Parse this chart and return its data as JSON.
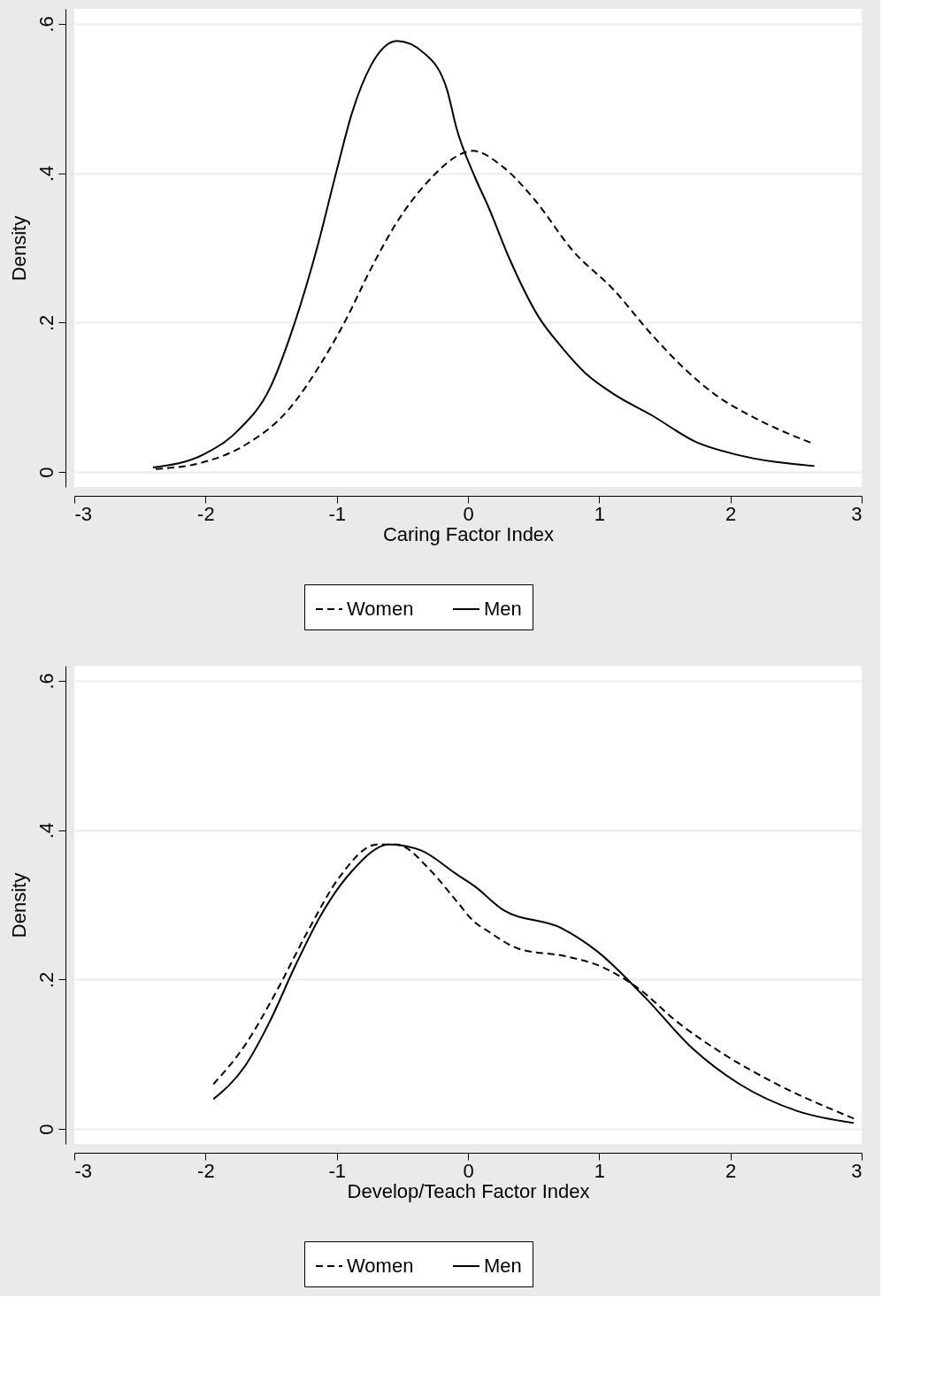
{
  "chart_data": [
    {
      "type": "line",
      "xlabel": "Caring Factor Index",
      "ylabel": "Density",
      "xlim": [
        -3,
        3
      ],
      "ylim": [
        -0.02,
        0.62
      ],
      "xticks": [
        -3,
        -2,
        -1,
        0,
        1,
        2,
        3
      ],
      "yticks": [
        0,
        {
          "value": 0.2,
          "label": ".2"
        },
        {
          "value": 0.4,
          "label": ".4"
        },
        {
          "value": 0.6,
          "label": ".6"
        }
      ],
      "grid": "y",
      "legend": "bottom",
      "series": [
        {
          "name": "Women",
          "color": "#000000",
          "line_style": "dashed",
          "x": [
            -2.38,
            -2.04,
            -1.7,
            -1.365,
            -1.125,
            -0.93,
            -0.74,
            -0.55,
            -0.31,
            -0.02,
            0.033,
            0.27,
            0.51,
            0.8,
            1.11,
            1.4,
            1.64,
            1.88,
            2.19,
            2.63
          ],
          "values": [
            0.004,
            0.012,
            0.036,
            0.084,
            0.144,
            0.204,
            0.272,
            0.332,
            0.388,
            0.428,
            0.43,
            0.408,
            0.364,
            0.296,
            0.244,
            0.184,
            0.14,
            0.104,
            0.072,
            0.038
          ]
        },
        {
          "name": "Men",
          "color": "#000000",
          "line_style": "solid",
          "x": [
            -2.4,
            -2.01,
            -1.75,
            -1.51,
            -1.32,
            -1.15,
            -1.0,
            -0.885,
            -0.74,
            -0.54,
            -0.33,
            -0.16,
            -0.087,
            0.05,
            0.153,
            0.32,
            0.537,
            0.71,
            0.897,
            1.114,
            1.4,
            1.74,
            2.03,
            2.64
          ],
          "values": [
            0.006,
            0.024,
            0.056,
            0.112,
            0.2,
            0.3,
            0.404,
            0.48,
            0.544,
            0.577,
            0.56,
            0.512,
            0.46,
            0.396,
            0.356,
            0.284,
            0.208,
            0.168,
            0.132,
            0.104,
            0.076,
            0.04,
            0.024,
            0.008
          ]
        }
      ]
    },
    {
      "type": "line",
      "xlabel": "Develop/Teach Factor Index",
      "ylabel": "Density",
      "xlim": [
        -3,
        3
      ],
      "ylim": [
        -0.02,
        0.62
      ],
      "xticks": [
        -3,
        -2,
        -1,
        0,
        1,
        2,
        3
      ],
      "yticks": [
        0,
        {
          "value": 0.2,
          "label": ".2"
        },
        {
          "value": 0.4,
          "label": ".4"
        },
        {
          "value": 0.6,
          "label": ".6"
        }
      ],
      "grid": "y",
      "legend": "bottom",
      "series": [
        {
          "name": "Women",
          "color": "#000000",
          "line_style": "dashed",
          "x": [
            -1.94,
            -1.7,
            -1.46,
            -1.22,
            -0.98,
            -0.69,
            -0.55,
            -0.28,
            -0.087,
            0.05,
            0.15,
            0.39,
            0.75,
            1.02,
            1.3,
            1.59,
            1.95,
            2.31,
            2.94
          ],
          "values": [
            0.06,
            0.112,
            0.184,
            0.265,
            0.337,
            0.381,
            0.381,
            0.345,
            0.305,
            0.277,
            0.265,
            0.241,
            0.231,
            0.217,
            0.188,
            0.144,
            0.1,
            0.064,
            0.014
          ]
        },
        {
          "name": "Men",
          "color": "#000000",
          "line_style": "solid",
          "x": [
            -1.94,
            -1.7,
            -1.51,
            -1.32,
            -1.125,
            -0.885,
            -0.6,
            -0.36,
            -0.087,
            0.05,
            0.27,
            0.71,
            0.99,
            1.35,
            1.71,
            2.07,
            2.51,
            2.94
          ],
          "values": [
            0.04,
            0.084,
            0.144,
            0.217,
            0.285,
            0.345,
            0.381,
            0.373,
            0.341,
            0.325,
            0.293,
            0.269,
            0.237,
            0.176,
            0.108,
            0.06,
            0.024,
            0.008
          ]
        }
      ]
    }
  ]
}
